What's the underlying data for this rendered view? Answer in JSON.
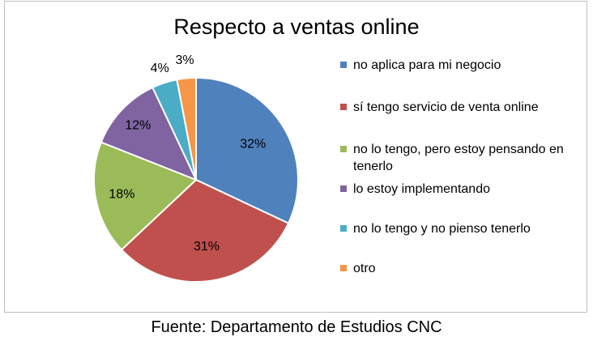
{
  "chart_data": {
    "type": "pie",
    "title": "Respecto a ventas online",
    "slices": [
      {
        "label": "no aplica para mi negocio",
        "value": 32,
        "display": "32%",
        "color": "#4f81bd"
      },
      {
        "label": "sí tengo servicio de venta online",
        "value": 31,
        "display": "31%",
        "color": "#c0504d"
      },
      {
        "label": "no lo tengo, pero estoy pensando en tenerlo",
        "value": 18,
        "display": "18%",
        "color": "#9bbb59"
      },
      {
        "label": "lo estoy implementando",
        "value": 12,
        "display": "12%",
        "color": "#8064a2"
      },
      {
        "label": "no lo tengo y no pienso tenerlo",
        "value": 4,
        "display": "4%",
        "color": "#4bacc6"
      },
      {
        "label": "otro",
        "value": 3,
        "display": "3%",
        "color": "#f79646"
      }
    ],
    "legend_position": "right"
  },
  "source_note": "Fuente: Departamento de Estudios CNC"
}
